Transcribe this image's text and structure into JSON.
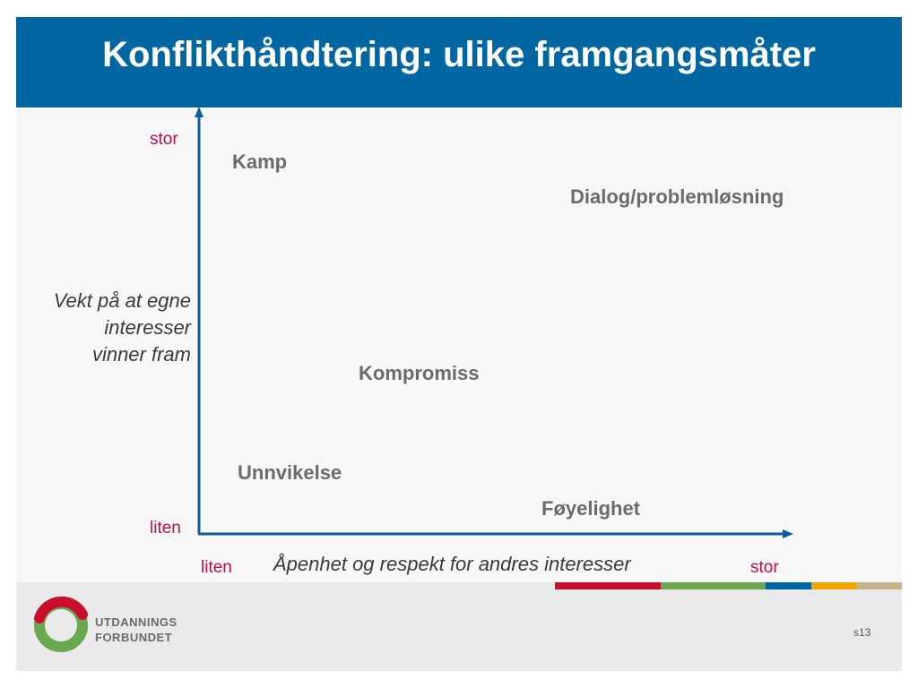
{
  "title": "Konflikthåndtering: ulike framgangsmåter",
  "y_axis": {
    "label_lines": [
      "Vekt på at egne",
      "interesser",
      "vinner fram"
    ],
    "high_label": "stor",
    "low_label": "liten"
  },
  "x_axis": {
    "label": "Åpenhet og respekt for andres interesser",
    "low_label": "liten",
    "high_label": "stor"
  },
  "strategies": {
    "kamp": "Kamp",
    "dialog": "Dialog/problemløsning",
    "kompromiss": "Kompromiss",
    "unnvikelse": "Unnvikelse",
    "foyelighet": "Føyelighet"
  },
  "colors": {
    "header": "#0066a1",
    "axis": "#0e5d9a",
    "tick_labels": "#c00d4a",
    "stripes": [
      "#c8102e",
      "#6aa84f",
      "#0066a1",
      "#f0a500",
      "#c8b28a"
    ]
  },
  "logo": {
    "line1": "UTDANNINGS",
    "line2": "FORBUNDET"
  },
  "page_number": "s13"
}
